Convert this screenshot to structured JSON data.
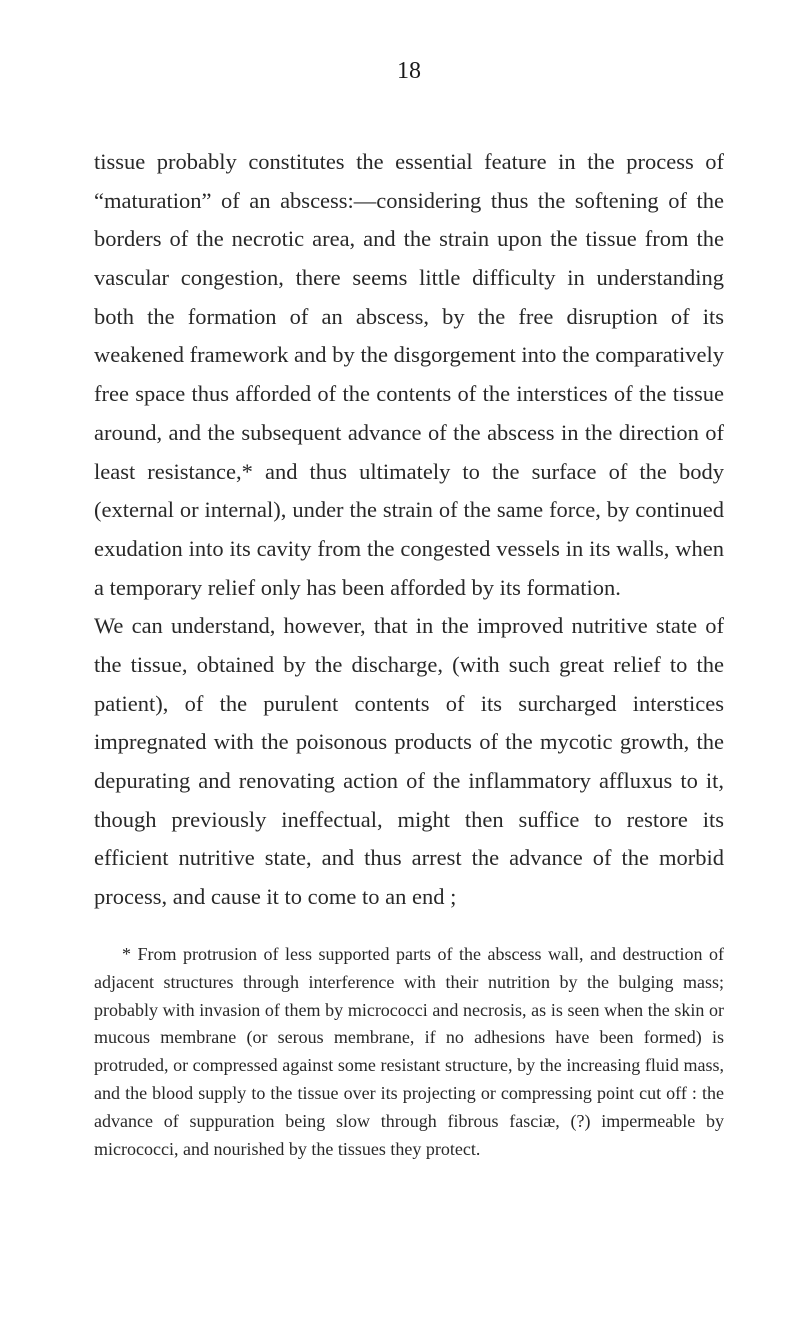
{
  "page_number": "18",
  "paragraph1": "tissue probably constitutes the essential feature in the process of “maturation” of an abscess:—considering thus the softening of the borders of the necrotic area, and the strain upon the tissue from the vascular congestion, there seems little difficulty in understanding both the formation of an abscess, by the free disruption of its weakened framework and by the disgorgement into the comparatively free space thus afforded of the contents of the interstices of the tissue around, and the subsequent advance of the abscess in the direction of least resistance,* and thus ultimately to the surface of the body (external or internal), under the strain of the same force, by continued exudation into its cavity from the congested vessels in its walls, when a temporary relief only has been afforded by its formation.",
  "paragraph2": "We can understand, however, that in the improved nutritive state of the tissue, obtained by the discharge, (with such great relief to the patient), of the purulent contents of its surcharged interstices impregnated with the poisonous products of the mycotic growth, the depurating and renovating action of the inflammatory affluxus to it, though previously ineffectual, might then suffice to restore its efficient nutritive state, and thus arrest the advance of the morbid process, and cause it to come to an end ;",
  "footnote": "* From protrusion of less supported parts of the abscess wall, and destruction of adjacent structures through interference with their nutrition by the bulging mass; probably with invasion of them by micrococci and necrosis, as is seen when the skin or mucous membrane (or serous membrane, if no adhesions have been formed) is protruded, or compressed against some resistant structure, by the increasing fluid mass, and the blood supply to the tissue over its projecting or compressing point cut off : the advance of suppuration being slow through fibrous fasciæ, (?) impermeable by micrococci, and nourished by the tissues they protect."
}
